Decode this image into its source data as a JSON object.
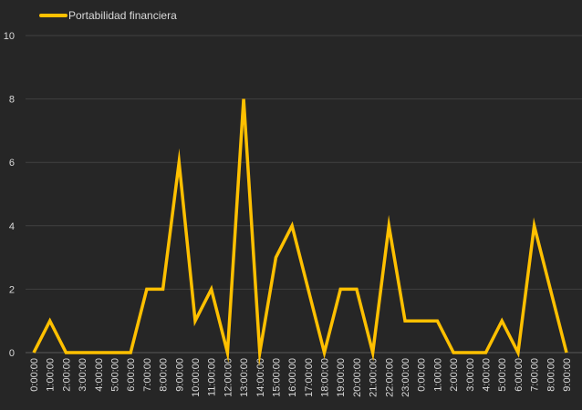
{
  "chart_data": {
    "type": "line",
    "title": "",
    "xlabel": "",
    "ylabel": "",
    "ylim": [
      0,
      10
    ],
    "yticks": [
      0,
      2,
      4,
      6,
      8,
      10
    ],
    "grid": true,
    "legend_position": "top-left",
    "categories": [
      "0:00:00",
      "1:00:00",
      "2:00:00",
      "3:00:00",
      "4:00:00",
      "5:00:00",
      "6:00:00",
      "7:00:00",
      "8:00:00",
      "9:00:00",
      "10:00:00",
      "11:00:00",
      "12:00:00",
      "13:00:00",
      "14:00:00",
      "15:00:00",
      "16:00:00",
      "17:00:00",
      "18:00:00",
      "19:00:00",
      "20:00:00",
      "21:00:00",
      "22:00:00",
      "23:00:00",
      "0:00:00",
      "1:00:00",
      "2:00:00",
      "3:00:00",
      "4:00:00",
      "5:00:00",
      "6:00:00",
      "7:00:00",
      "8:00:00",
      "9:00:00"
    ],
    "series": [
      {
        "name": "Portabilidad financiera",
        "color": "#FFC000",
        "values": [
          0,
          1,
          0,
          0,
          0,
          0,
          0,
          2,
          2,
          6,
          1,
          2,
          0,
          8,
          0,
          3,
          4,
          2,
          0,
          2,
          2,
          0,
          4,
          1,
          1,
          1,
          0,
          0,
          0,
          1,
          0,
          4,
          2,
          0
        ]
      }
    ]
  }
}
